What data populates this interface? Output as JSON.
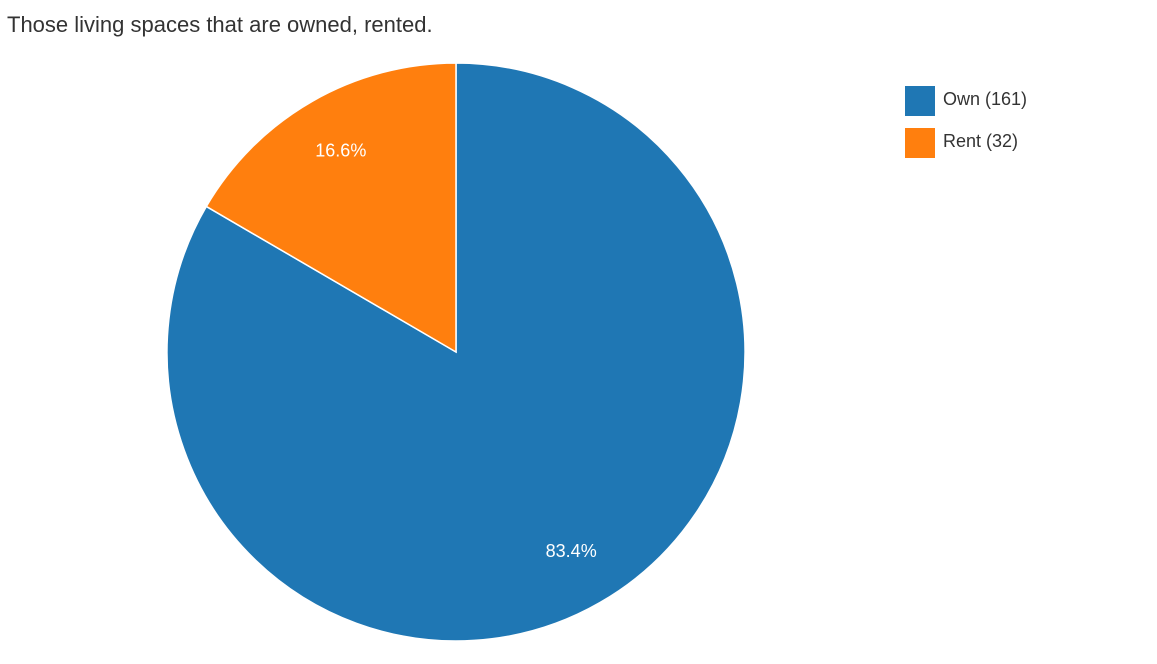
{
  "chart_data": {
    "type": "pie",
    "title": "Those living spaces that are owned, rented.",
    "categories": [
      "Own (161)",
      "Rent (32)"
    ],
    "values": [
      83.4,
      16.6
    ],
    "value_labels": [
      "83.4%",
      "16.6%"
    ],
    "colors": [
      "#1f77b4",
      "#ff7f0e"
    ],
    "legend": "top-right"
  }
}
